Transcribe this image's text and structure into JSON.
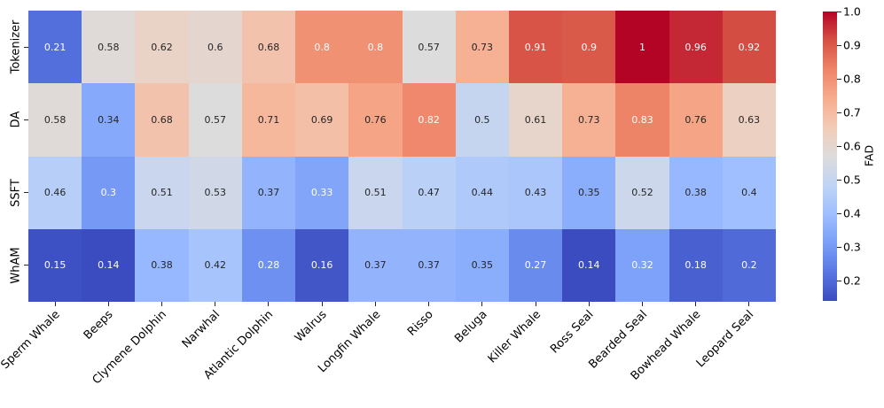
{
  "chart_data": {
    "type": "heatmap",
    "title": "",
    "colorbar_label": "FAD",
    "rows": [
      "Tokenizer",
      "DA",
      "SSFT",
      "WhAM"
    ],
    "columns": [
      "Sperm Whale",
      "Beeps",
      "Clymene Dolphin",
      "Narwhal",
      "Atlantic Dolphin",
      "Walrus",
      "Longfin Whale",
      "Risso",
      "Beluga",
      "Killer Whale",
      "Ross Seal",
      "Bearded Seal",
      "Bowhead Whale",
      "Leopard Seal"
    ],
    "values": [
      [
        0.21,
        0.58,
        0.62,
        0.6,
        0.68,
        0.8,
        0.8,
        0.57,
        0.73,
        0.91,
        0.9,
        1,
        0.96,
        0.92
      ],
      [
        0.58,
        0.34,
        0.68,
        0.57,
        0.71,
        0.69,
        0.76,
        0.82,
        0.5,
        0.61,
        0.73,
        0.83,
        0.76,
        0.63
      ],
      [
        0.46,
        0.3,
        0.51,
        0.53,
        0.37,
        0.33,
        0.51,
        0.47,
        0.44,
        0.43,
        0.35,
        0.52,
        0.38,
        0.4
      ],
      [
        0.15,
        0.14,
        0.38,
        0.42,
        0.28,
        0.16,
        0.37,
        0.37,
        0.35,
        0.27,
        0.14,
        0.32,
        0.18,
        0.2
      ]
    ],
    "annot_white_text": [
      [
        1,
        0,
        0,
        0,
        0,
        1,
        1,
        0,
        0,
        1,
        1,
        1,
        1,
        1
      ],
      [
        0,
        0,
        0,
        0,
        0,
        0,
        0,
        1,
        0,
        0,
        0,
        1,
        0,
        0
      ],
      [
        0,
        1,
        0,
        0,
        0,
        1,
        0,
        0,
        0,
        0,
        0,
        0,
        0,
        0
      ],
      [
        1,
        1,
        0,
        0,
        1,
        1,
        0,
        0,
        0,
        1,
        1,
        1,
        1,
        1
      ]
    ],
    "vmin": 0.14,
    "vmax": 1.0,
    "colormap": "coolwarm",
    "colormap_anchors": [
      "#3b4cc0",
      "#5977e3",
      "#7b9ff9",
      "#9ebeff",
      "#c0d4f5",
      "#dddcdc",
      "#f2cbb7",
      "#f7ac8e",
      "#ee8468",
      "#d65244",
      "#b40426"
    ],
    "colorbar_ticks": [
      "1.0",
      "0.9",
      "0.8",
      "0.7",
      "0.6",
      "0.5",
      "0.4",
      "0.3",
      "0.2"
    ],
    "annot_text_dark": "#262626",
    "annot_text_light": "#ffffff",
    "legend_position": "right",
    "grid": false,
    "background": "#ffffff"
  }
}
